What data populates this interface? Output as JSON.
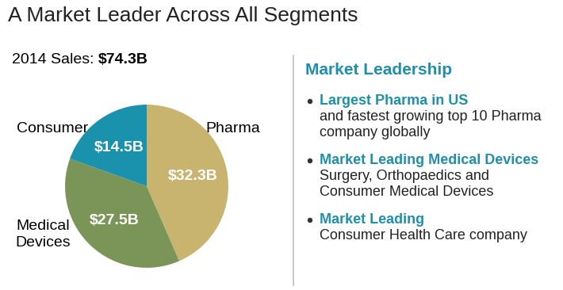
{
  "chart_data": {
    "type": "pie",
    "title": "A Market Leader Across All Segments",
    "subtitle": "2014 Sales:",
    "subtitle_value": "$74.3B",
    "categories": [
      "Pharma",
      "Medical\nDevices",
      "Consumer"
    ],
    "values": [
      32.3,
      27.5,
      14.5
    ],
    "value_labels": [
      "$32.3B",
      "$27.5B",
      "$14.5B"
    ],
    "colors": [
      "#c8b46e",
      "#7a9557",
      "#1a91ad"
    ],
    "data_labels": true
  },
  "panel": {
    "heading": "Market Leadership",
    "items": [
      {
        "lead": "Largest Pharma in US",
        "text": "and fastest growing top 10 Pharma\ncompany globally"
      },
      {
        "lead": "Market Leading Medical Devices",
        "text": "Surgery, Orthopaedics and\nConsumer Medical Devices"
      },
      {
        "lead": "Market Leading",
        "text": "Consumer Health Care company"
      }
    ]
  }
}
